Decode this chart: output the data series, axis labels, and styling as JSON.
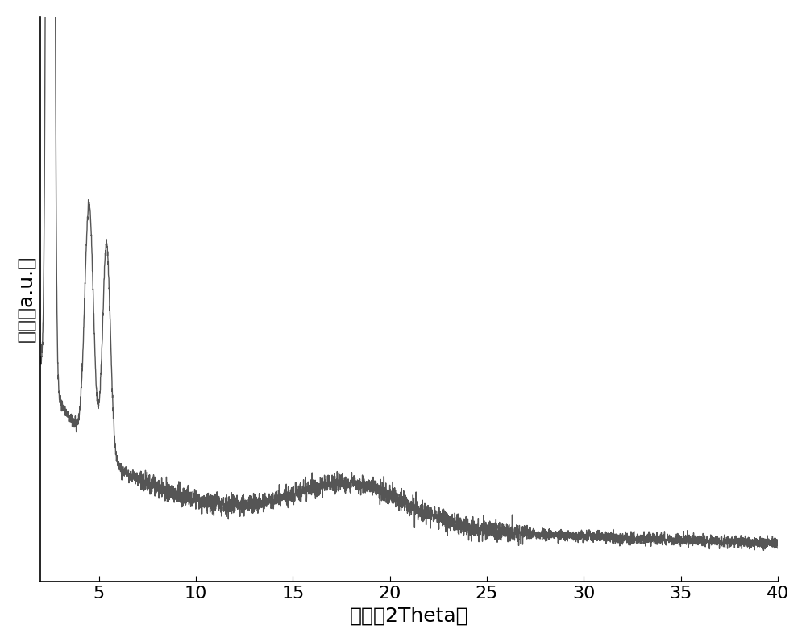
{
  "xlabel": "角度（2Theta）",
  "ylabel": "强度（a.u.）",
  "xlim": [
    2,
    40
  ],
  "line_color": "#555555",
  "line_width": 1.0,
  "background_color": "#ffffff",
  "tick_fontsize": 16,
  "label_fontsize": 18,
  "xticks": [
    5,
    10,
    15,
    20,
    25,
    30,
    35,
    40
  ],
  "figsize": [
    10.0,
    7.96
  ],
  "dpi": 100,
  "ylim": [
    0,
    100
  ]
}
